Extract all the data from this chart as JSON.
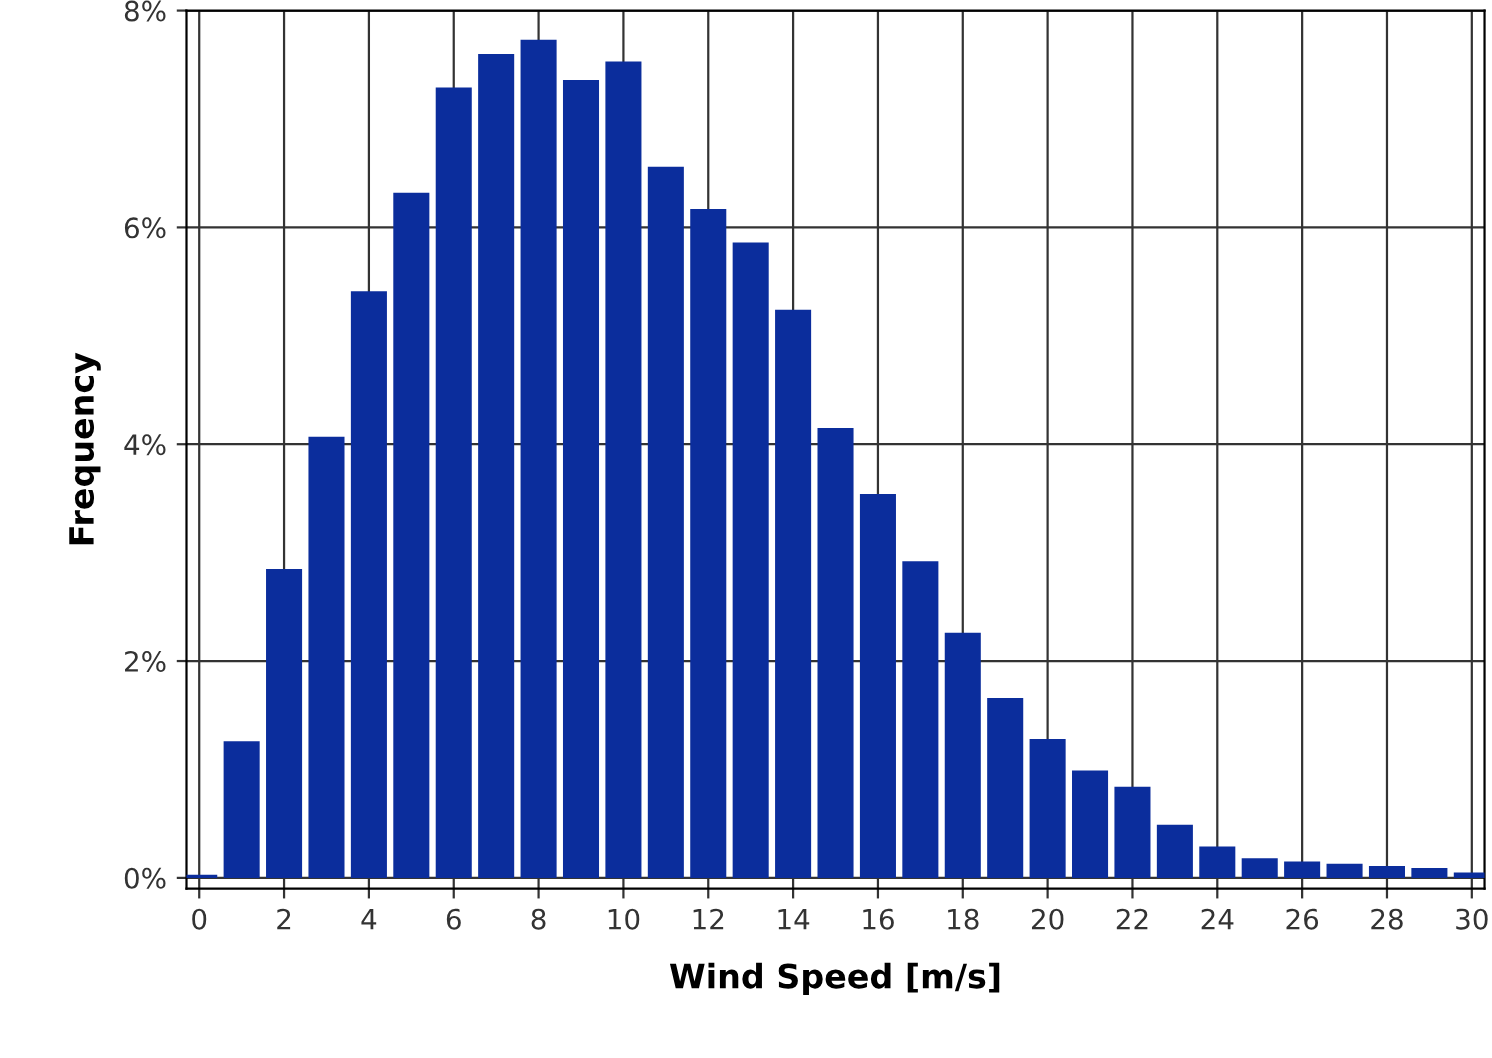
{
  "chart_data": {
    "type": "bar",
    "xlabel": "Wind Speed [m/s]",
    "ylabel": "Frequency",
    "x": [
      0,
      1,
      2,
      3,
      4,
      5,
      6,
      7,
      8,
      9,
      10,
      11,
      12,
      13,
      14,
      15,
      16,
      17,
      18,
      19,
      20,
      21,
      22,
      23,
      24,
      25,
      26,
      27,
      28,
      29,
      30
    ],
    "values": [
      0.03,
      1.26,
      2.85,
      4.07,
      5.41,
      6.32,
      7.29,
      7.6,
      7.73,
      7.36,
      7.53,
      6.56,
      6.17,
      5.86,
      5.24,
      4.15,
      3.54,
      2.92,
      2.26,
      1.66,
      1.28,
      0.99,
      0.84,
      0.49,
      0.29,
      0.18,
      0.15,
      0.13,
      0.11,
      0.09,
      0.05
    ],
    "color": "#0b2d9c",
    "xlim": [
      -0.3,
      30.3
    ],
    "xticks": [
      0,
      2,
      4,
      6,
      8,
      10,
      12,
      14,
      16,
      18,
      20,
      22,
      24,
      26,
      28,
      30
    ],
    "ylim": [
      -0.1,
      8.0
    ],
    "yticks": [
      {
        "value": 0,
        "label": "0%"
      },
      {
        "value": 2,
        "label": "2%"
      },
      {
        "value": 4,
        "label": "4%"
      },
      {
        "value": 6,
        "label": "6%"
      },
      {
        "value": 8,
        "label": "8%"
      }
    ],
    "grid": true
  }
}
